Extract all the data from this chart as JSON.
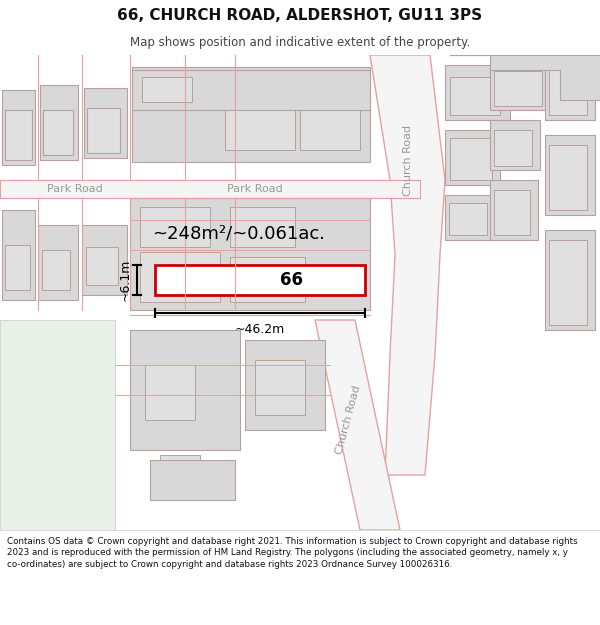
{
  "title": "66, CHURCH ROAD, ALDERSHOT, GU11 3PS",
  "subtitle": "Map shows position and indicative extent of the property.",
  "footer": "Contains OS data © Crown copyright and database right 2021. This information is subject to Crown copyright and database rights 2023 and is reproduced with the permission of HM Land Registry. The polygons (including the associated geometry, namely x, y co-ordinates) are subject to Crown copyright and database rights 2023 Ordnance Survey 100026316.",
  "bg_color": "#ffffff",
  "map_bg": "#ffffff",
  "road_color": "#e8a0a0",
  "building_fill": "#d8d8d8",
  "building_stroke": "#b8a0a0",
  "highlight_color": "#cc0000",
  "highlight_fill": "#ffffff",
  "road_label_color": "#999999",
  "annotation_color": "#000000",
  "area_text": "~248m²/~0.061ac.",
  "width_label": "~46.2m",
  "height_label": "~6.1m",
  "number_label": "66"
}
